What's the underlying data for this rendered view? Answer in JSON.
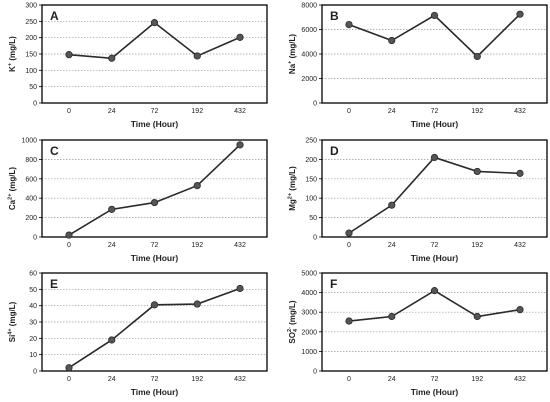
{
  "chart_data": [
    {
      "panel": "A",
      "type": "line",
      "categories": [
        "0",
        "24",
        "72",
        "192",
        "432"
      ],
      "values": [
        148,
        137,
        246,
        144,
        201
      ],
      "ylabel_main": "K",
      "ylabel_sup": "+",
      "ylabel_unit": " (mg/L)",
      "xlabel": "Time  (Hour)",
      "ylim": [
        0,
        300
      ],
      "yticks": [
        0,
        50,
        100,
        150,
        200,
        250,
        300
      ],
      "grid": true
    },
    {
      "panel": "B",
      "type": "line",
      "categories": [
        "0",
        "24",
        "72",
        "192",
        "432"
      ],
      "values": [
        6400,
        5100,
        7150,
        3800,
        7250
      ],
      "ylabel_main": "Na",
      "ylabel_sup": "+",
      "ylabel_unit": " (mg/L)",
      "xlabel": "Time  (Hour)",
      "ylim": [
        0,
        8000
      ],
      "yticks": [
        0,
        2000,
        4000,
        6000,
        8000
      ],
      "grid": true
    },
    {
      "panel": "C",
      "type": "line",
      "categories": [
        "0",
        "24",
        "72",
        "192",
        "432"
      ],
      "values": [
        20,
        285,
        355,
        530,
        950
      ],
      "ylabel_main": "Ca",
      "ylabel_sup": "2+",
      "ylabel_unit": " (mg/L)",
      "xlabel": "Time  (Hour)",
      "ylim": [
        0,
        1000
      ],
      "yticks": [
        0,
        200,
        400,
        600,
        800,
        1000
      ],
      "grid": true
    },
    {
      "panel": "D",
      "type": "line",
      "categories": [
        "0",
        "24",
        "72",
        "192",
        "432"
      ],
      "values": [
        10,
        82,
        205,
        169,
        164
      ],
      "ylabel_main": "Mg",
      "ylabel_sup": "2+",
      "ylabel_unit": " (mg/L)",
      "xlabel": "Time  (Hour)",
      "ylim": [
        0,
        250
      ],
      "yticks": [
        0,
        50,
        100,
        150,
        200,
        250
      ],
      "grid": true
    },
    {
      "panel": "E",
      "type": "line",
      "categories": [
        "0",
        "24",
        "72",
        "192",
        "432"
      ],
      "values": [
        2,
        19,
        40.5,
        41,
        50.5
      ],
      "ylabel_main": "Si",
      "ylabel_sup": "4+",
      "ylabel_unit": " (mg/L)",
      "xlabel": "Time  (Hour)",
      "ylim": [
        0,
        60
      ],
      "yticks": [
        0,
        10,
        20,
        30,
        40,
        50,
        60
      ],
      "grid": true
    },
    {
      "panel": "F",
      "type": "line",
      "categories": [
        "0",
        "24",
        "72",
        "192",
        "432"
      ],
      "values": [
        2550,
        2780,
        4100,
        2780,
        3130
      ],
      "ylabel_main": "SO",
      "ylabel_sup": "2-",
      "ylabel_sub": "4",
      "ylabel_unit": " (mg/L)",
      "xlabel": "Time  (Hour)",
      "ylim": [
        0,
        5000
      ],
      "yticks": [
        0,
        1000,
        2000,
        3000,
        4000,
        5000
      ],
      "grid": true
    }
  ],
  "colors": {
    "line": "#2a2a2a",
    "marker": "#555555",
    "grid": "#999999",
    "frame": "#000000"
  }
}
